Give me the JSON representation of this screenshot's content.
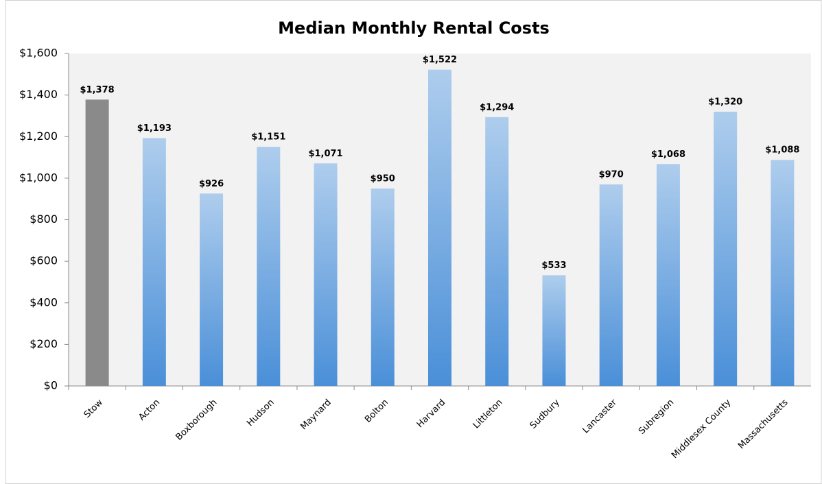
{
  "chart_data": {
    "type": "bar",
    "title": "Median Monthly Rental Costs",
    "categories": [
      "Stow",
      "Acton",
      "Boxborough",
      "Hudson",
      "Maynard",
      "Bolton",
      "Harvard",
      "Littleton",
      "Sudbury",
      "Lancaster",
      "Subregion",
      "Middlesex County",
      "Massachusetts"
    ],
    "values": [
      1378,
      1193,
      926,
      1151,
      1071,
      950,
      1522,
      1294,
      533,
      970,
      1068,
      1320,
      1088
    ],
    "value_labels": [
      "$1,378",
      "$1,193",
      "$926",
      "$1,151",
      "$1,071",
      "$950",
      "$1,522",
      "$1,294",
      "$533",
      "$970",
      "$1,068",
      "$1,320",
      "$1,088"
    ],
    "colors": [
      "#8a8a8a",
      "#4a8fd8",
      "#4a8fd8",
      "#4a8fd8",
      "#4a8fd8",
      "#4a8fd8",
      "#4a8fd8",
      "#4a8fd8",
      "#4a8fd8",
      "#4a8fd8",
      "#4a8fd8",
      "#4a8fd8",
      "#4a8fd8"
    ],
    "ylim": [
      0,
      1600
    ],
    "yticks": [
      {
        "value": 0,
        "label": "$0"
      },
      {
        "value": 200,
        "label": "$200"
      },
      {
        "value": 400,
        "label": "$400"
      },
      {
        "value": 600,
        "label": "$600"
      },
      {
        "value": 800,
        "label": "$800"
      },
      {
        "value": 1000,
        "label": "$1,000"
      },
      {
        "value": 1200,
        "label": "$1,200"
      },
      {
        "value": 1400,
        "label": "$1,400"
      },
      {
        "value": 1600,
        "label": "$1,600"
      }
    ],
    "grid": false
  }
}
